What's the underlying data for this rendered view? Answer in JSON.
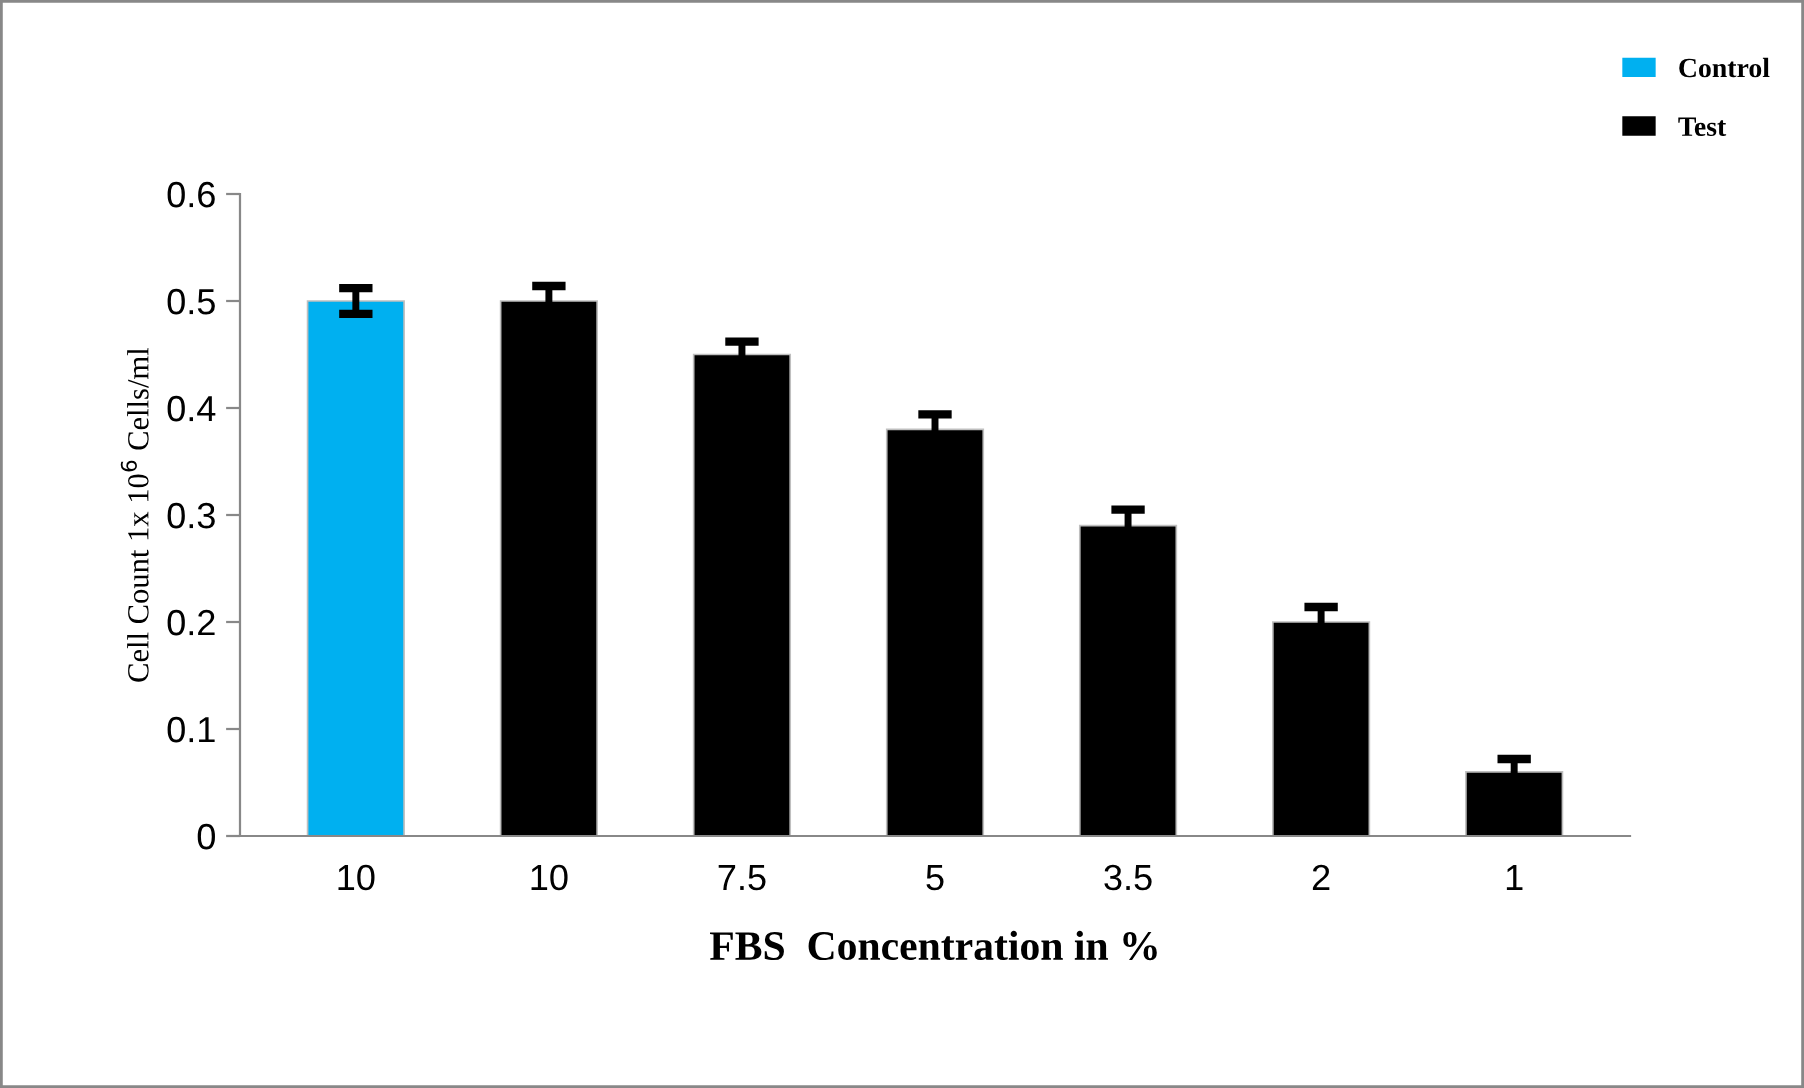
{
  "chart_data": {
    "type": "bar",
    "xlabel": "FBS  Concentration in %",
    "ylabel": "Cell Count 1x 10$^{6}$ Cells/ml",
    "categories": [
      "10",
      "10",
      "7.5",
      "5",
      "3.5",
      "2",
      "1"
    ],
    "series": [
      {
        "name": "Control",
        "color": "#00b0f0",
        "values": [
          0.5,
          null,
          null,
          null,
          null,
          null,
          null
        ],
        "errors": [
          0.012,
          null,
          null,
          null,
          null,
          null,
          null
        ]
      },
      {
        "name": "Test",
        "color": "#000000",
        "values": [
          null,
          0.5,
          0.45,
          0.38,
          0.29,
          0.2,
          0.06
        ],
        "errors": [
          null,
          0.014,
          0.012,
          0.014,
          0.015,
          0.014,
          0.012
        ]
      }
    ],
    "ylim": [
      0,
      0.6
    ],
    "yticks": [
      0,
      0.1,
      0.2,
      0.3,
      0.4,
      0.5,
      0.6
    ],
    "grid": false,
    "legend": "top right"
  }
}
